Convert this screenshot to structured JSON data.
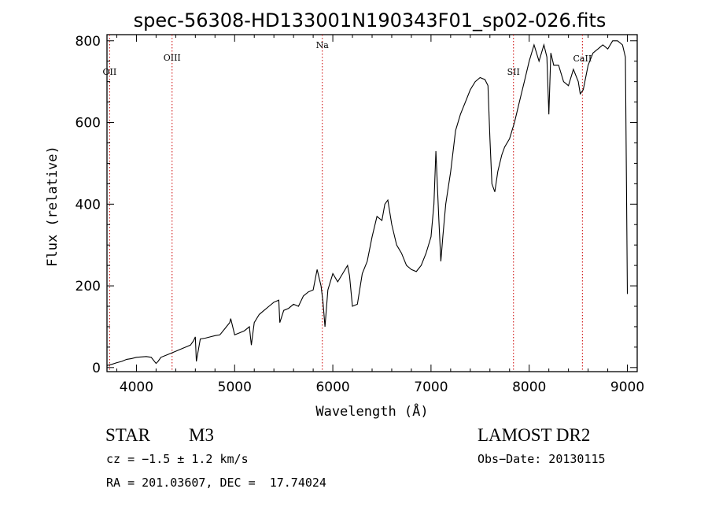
{
  "chart_data": {
    "type": "line",
    "title": "spec-56308-HD133001N190343F01_sp02-026.fits",
    "xlabel": "Wavelength (Å)",
    "ylabel": "Flux (relative)",
    "xlim": [
      3700,
      9100
    ],
    "ylim": [
      -10,
      815
    ],
    "x_ticks": [
      4000,
      5000,
      6000,
      7000,
      8000,
      9000
    ],
    "y_ticks": [
      0,
      200,
      400,
      600,
      800
    ],
    "series": [
      {
        "x": [
          3700,
          3750,
          3800,
          3850,
          3900,
          3950,
          4000,
          4050,
          4100,
          4150,
          4200,
          4220,
          4250,
          4300,
          4350,
          4400,
          4450,
          4500,
          4550,
          4580,
          4600,
          4610,
          4650,
          4700,
          4750,
          4800,
          4850,
          4900,
          4950,
          4960,
          5000,
          5050,
          5100,
          5150,
          5170,
          5200,
          5250,
          5300,
          5350,
          5400,
          5450,
          5460,
          5500,
          5550,
          5600,
          5650,
          5700,
          5750,
          5800,
          5840,
          5880,
          5900,
          5920,
          5950,
          6000,
          6050,
          6100,
          6150,
          6170,
          6200,
          6250,
          6300,
          6350,
          6400,
          6450,
          6500,
          6530,
          6560,
          6600,
          6650,
          6700,
          6750,
          6800,
          6850,
          6900,
          6950,
          7000,
          7030,
          7050,
          7080,
          7100,
          7120,
          7150,
          7200,
          7250,
          7300,
          7350,
          7400,
          7450,
          7500,
          7550,
          7580,
          7600,
          7620,
          7650,
          7680,
          7700,
          7720,
          7750,
          7800,
          7850,
          7900,
          7950,
          8000,
          8050,
          8100,
          8150,
          8180,
          8200,
          8220,
          8250,
          8300,
          8350,
          8400,
          8450,
          8500,
          8520,
          8550,
          8600,
          8650,
          8700,
          8750,
          8800,
          8850,
          8900,
          8950,
          8980,
          9000
        ],
        "values": [
          5,
          8,
          12,
          15,
          20,
          22,
          25,
          26,
          27,
          25,
          10,
          15,
          25,
          30,
          35,
          40,
          45,
          50,
          55,
          65,
          75,
          15,
          70,
          72,
          75,
          78,
          80,
          95,
          110,
          120,
          80,
          85,
          90,
          100,
          55,
          110,
          130,
          140,
          150,
          160,
          165,
          110,
          140,
          145,
          155,
          150,
          175,
          185,
          190,
          240,
          200,
          160,
          100,
          190,
          230,
          210,
          230,
          250,
          225,
          150,
          155,
          230,
          260,
          320,
          370,
          360,
          400,
          410,
          350,
          300,
          280,
          250,
          240,
          235,
          250,
          280,
          320,
          400,
          530,
          360,
          260,
          320,
          400,
          480,
          580,
          620,
          650,
          680,
          700,
          710,
          705,
          690,
          560,
          450,
          430,
          480,
          500,
          520,
          540,
          560,
          600,
          650,
          700,
          750,
          790,
          750,
          790,
          760,
          620,
          770,
          740,
          740,
          700,
          690,
          730,
          700,
          670,
          680,
          740,
          770,
          780,
          790,
          780,
          800,
          800,
          790,
          760,
          180
        ]
      }
    ],
    "annotations": [
      {
        "label": "OII",
        "x": 3727
      },
      {
        "label": "OIII",
        "x": 4363
      },
      {
        "label": "Na",
        "x": 5893
      },
      {
        "label": "SII",
        "x": 7840
      },
      {
        "label": "CaII",
        "x": 8542
      }
    ],
    "line_color": "#000000",
    "marker_line_color": "#cc0000",
    "grid": false
  },
  "info": {
    "object_class": "STAR",
    "subclass": "M3",
    "survey": "LAMOST DR2",
    "cz": "cz = −1.5 ± 1.2 km/s",
    "obs_date": "Obs−Date: 20130115",
    "coords": "RA = 201.03607, DEC =  17.74024"
  }
}
